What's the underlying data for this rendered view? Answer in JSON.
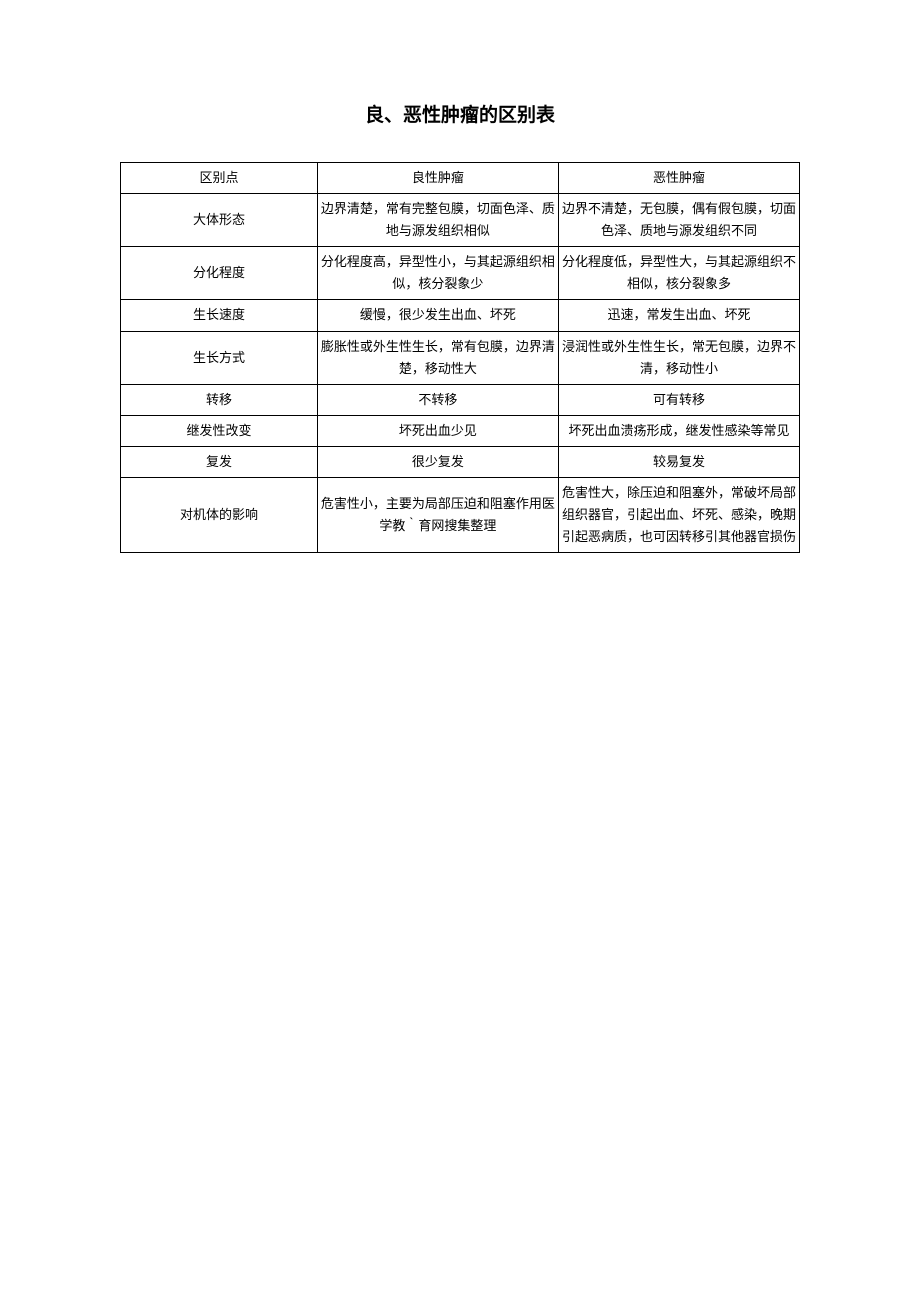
{
  "title": "良、恶性肿瘤的区别表",
  "table": {
    "columns": [
      "区别点",
      "良性肿瘤",
      "恶性肿瘤"
    ],
    "rows": [
      {
        "label": "大体形态",
        "benign": "边界清楚，常有完整包膜，切面色泽、质地与源发组织相似",
        "malignant": "边界不清楚，无包膜，偶有假包膜，切面色泽、质地与源发组织不同"
      },
      {
        "label": "分化程度",
        "benign": "分化程度高，异型性小，与其起源组织相似，核分裂象少",
        "malignant": "分化程度低，异型性大，与其起源组织不相似，核分裂象多"
      },
      {
        "label": "生长速度",
        "benign": "缓慢，很少发生出血、坏死",
        "malignant": "迅速，常发生出血、坏死"
      },
      {
        "label": "生长方式",
        "benign": "膨胀性或外生性生长，常有包膜，边界清楚，移动性大",
        "malignant": "浸润性或外生性生长，常无包膜，边界不清，移动性小"
      },
      {
        "label": "转移",
        "benign": "不转移",
        "malignant": "可有转移"
      },
      {
        "label": "继发性改变",
        "benign": "坏死出血少见",
        "malignant": "坏死出血溃疡形成，继发性感染等常见"
      },
      {
        "label": "复发",
        "benign": "很少复发",
        "malignant": "较易复发"
      },
      {
        "label": "对机体的影响",
        "benign": "危害性小，主要为局部压迫和阻塞作用医学教｀育网搜集整理",
        "malignant": "危害性大，除压迫和阻塞外，常破坏局部组织器官，引起出血、坏死、感染，晚期引起恶病质，也可因转移引其他器官损伤"
      }
    ]
  },
  "styling": {
    "background_color": "#ffffff",
    "text_color": "#000000",
    "border_color": "#000000",
    "title_fontsize": 19,
    "body_fontsize": 13,
    "font_family": "SimSun",
    "column_widths": [
      "29%",
      "35.5%",
      "35.5%"
    ]
  }
}
